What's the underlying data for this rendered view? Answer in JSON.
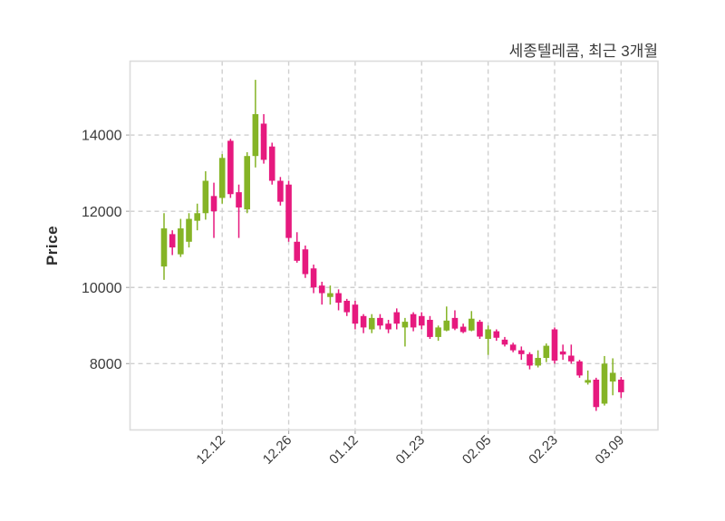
{
  "chart_data": {
    "type": "candlestick",
    "title": "세종텔레콤, 최근 3개월",
    "ylabel": "Price",
    "grid": true,
    "y_ticks": [
      8000,
      10000,
      12000,
      14000
    ],
    "y_range": [
      6260,
      15940
    ],
    "x_tick_labels": [
      "12.12",
      "12.26",
      "01.12",
      "01.23",
      "02.05",
      "02.23",
      "03.09"
    ],
    "x_tick_indices": [
      7,
      15,
      23,
      31,
      39,
      47,
      55
    ],
    "up_color": "#85b426",
    "down_color": "#e6197e",
    "grid_color": "#cfcfcf",
    "border_color": "#dcdcdc",
    "text_color": "#3a3a3a",
    "candles_format": [
      "open",
      "high",
      "low",
      "close"
    ],
    "candles": [
      [
        10550,
        11950,
        10200,
        11550
      ],
      [
        11400,
        11500,
        10850,
        11050
      ],
      [
        10870,
        11800,
        10800,
        11550
      ],
      [
        11200,
        11950,
        11050,
        11800
      ],
      [
        11750,
        12200,
        11500,
        11950
      ],
      [
        11950,
        13050,
        11780,
        12800
      ],
      [
        12400,
        12750,
        11300,
        12000
      ],
      [
        12350,
        13500,
        12200,
        13400
      ],
      [
        13850,
        13900,
        12350,
        12450
      ],
      [
        12500,
        12700,
        11300,
        12100
      ],
      [
        12050,
        13550,
        11950,
        13450
      ],
      [
        13450,
        15450,
        13150,
        14550
      ],
      [
        14300,
        14550,
        13250,
        13350
      ],
      [
        13700,
        13800,
        12700,
        12800
      ],
      [
        12800,
        12900,
        12150,
        12250
      ],
      [
        12700,
        12800,
        11200,
        11300
      ],
      [
        11200,
        11450,
        10650,
        10700
      ],
      [
        11000,
        11100,
        10250,
        10350
      ],
      [
        10500,
        10600,
        9850,
        10000
      ],
      [
        10050,
        10150,
        9550,
        9850
      ],
      [
        9750,
        10050,
        9550,
        9850
      ],
      [
        9850,
        9950,
        9400,
        9600
      ],
      [
        9650,
        9700,
        9250,
        9350
      ],
      [
        9550,
        9650,
        8900,
        9050
      ],
      [
        9250,
        9300,
        8800,
        8950
      ],
      [
        8900,
        9300,
        8800,
        9200
      ],
      [
        9200,
        9300,
        8900,
        9000
      ],
      [
        9050,
        9150,
        8800,
        8900
      ],
      [
        9350,
        9450,
        8900,
        9050
      ],
      [
        8950,
        9200,
        8450,
        9100
      ],
      [
        9300,
        9350,
        8850,
        8950
      ],
      [
        9250,
        9350,
        8900,
        9000
      ],
      [
        9150,
        9250,
        8650,
        8700
      ],
      [
        8700,
        9000,
        8600,
        8950
      ],
      [
        8870,
        9500,
        8850,
        9130
      ],
      [
        9200,
        9400,
        8880,
        8920
      ],
      [
        8970,
        9050,
        8800,
        8830
      ],
      [
        8870,
        9380,
        8850,
        9180
      ],
      [
        9100,
        9150,
        8650,
        8710
      ],
      [
        8650,
        9000,
        8230,
        8900
      ],
      [
        8850,
        8900,
        8600,
        8680
      ],
      [
        8630,
        8700,
        8450,
        8500
      ],
      [
        8500,
        8550,
        8300,
        8350
      ],
      [
        8350,
        8450,
        8100,
        8250
      ],
      [
        8250,
        8300,
        7850,
        7950
      ],
      [
        7950,
        8350,
        7900,
        8150
      ],
      [
        8150,
        8530,
        8040,
        8470
      ],
      [
        8900,
        8950,
        8000,
        8080
      ],
      [
        8320,
        8500,
        8100,
        8240
      ],
      [
        8210,
        8500,
        8000,
        8060
      ],
      [
        8060,
        8100,
        7630,
        7690
      ],
      [
        7500,
        7820,
        7450,
        7570
      ],
      [
        7580,
        7630,
        6760,
        6860
      ],
      [
        6950,
        8200,
        6900,
        8000
      ],
      [
        7530,
        8140,
        7170,
        7760
      ],
      [
        7580,
        7650,
        7100,
        7250
      ]
    ]
  }
}
